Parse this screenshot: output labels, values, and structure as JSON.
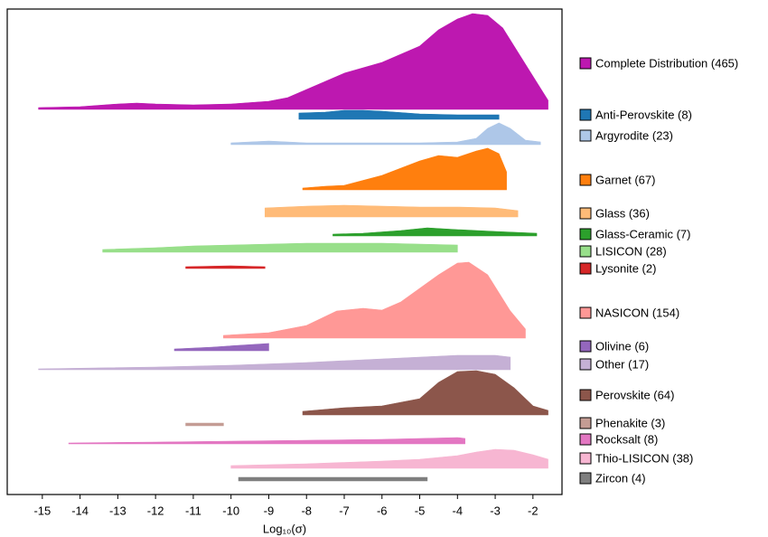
{
  "chart_data": {
    "type": "ridgeline",
    "xlabel": "Log₁₀(σ)",
    "xlim": [
      -15.93,
      -1.23
    ],
    "xticks": [
      -15,
      -14,
      -13,
      -12,
      -11,
      -10,
      -9,
      -8,
      -7,
      -6,
      -5,
      -4,
      -3,
      -2
    ],
    "series": [
      {
        "name": "Complete Distribution (465)",
        "color": "#bd18b0",
        "x": [
          -15.1,
          -14,
          -13,
          -12.5,
          -12,
          -11,
          -10,
          -9,
          -8.5,
          -8,
          -7,
          -6,
          -5,
          -4.5,
          -4,
          -3.6,
          -3.2,
          -2.8,
          -2.2,
          -1.6
        ],
        "values": [
          2,
          3,
          6,
          7,
          6,
          5,
          6,
          9,
          13,
          22,
          40,
          52,
          70,
          88,
          100,
          106,
          104,
          90,
          50,
          10
        ]
      },
      {
        "name": "Anti-Perovskite (8)",
        "color": "#1f77b4",
        "x": [
          -8.2,
          -7.5,
          -7,
          -6.5,
          -6,
          -5,
          -4,
          -3.5,
          -2.9
        ],
        "values": [
          7,
          8,
          10,
          10,
          9,
          6,
          5,
          5,
          5
        ]
      },
      {
        "name": "Argyrodite (23)",
        "color": "#aec7e8",
        "x": [
          -10,
          -9,
          -8,
          -7,
          -6,
          -5,
          -4,
          -3.5,
          -3.2,
          -2.9,
          -2.6,
          -2.2,
          -1.8
        ],
        "values": [
          2,
          4,
          2,
          2,
          2,
          2,
          3,
          7,
          18,
          24,
          18,
          5,
          3
        ]
      },
      {
        "name": "Garnet (67)",
        "color": "#ff7f0e",
        "x": [
          -8.1,
          -7.5,
          -7,
          -6,
          -5,
          -4.5,
          -4,
          -3.5,
          -3.2,
          -2.9,
          -2.7
        ],
        "values": [
          2,
          4,
          5,
          16,
          32,
          38,
          36,
          43,
          46,
          40,
          20
        ]
      },
      {
        "name": "Glass (36)",
        "color": "#ffbb78",
        "x": [
          -9.1,
          -8,
          -7,
          -6,
          -5,
          -4,
          -3,
          -2.4
        ],
        "values": [
          10,
          12,
          13,
          12,
          11,
          11,
          10,
          7
        ]
      },
      {
        "name": "Glass-Ceramic (7)",
        "color": "#2ca02c",
        "x": [
          -7.3,
          -6.5,
          -5.5,
          -4.8,
          -4,
          -3,
          -1.9
        ],
        "values": [
          2,
          3,
          6,
          9,
          7,
          5,
          3
        ]
      },
      {
        "name": "LISICON (28)",
        "color": "#98df8a",
        "x": [
          -13.4,
          -12,
          -11,
          -10,
          -9,
          -8,
          -7,
          -6,
          -5,
          -4
        ],
        "values": [
          3,
          5,
          7,
          8,
          9,
          10,
          10,
          10,
          9,
          8
        ]
      },
      {
        "name": "Lysonite (2)",
        "color": "#d62728",
        "x": [
          -11.2,
          -10,
          -9.1
        ],
        "values": [
          2,
          3,
          2
        ]
      },
      {
        "name": "NASICON (154)",
        "color": "#ff9896",
        "x": [
          -10.2,
          -9,
          -8,
          -7.2,
          -6.5,
          -6,
          -5.5,
          -5,
          -4.5,
          -4,
          -3.7,
          -3.2,
          -2.6,
          -2.2
        ],
        "values": [
          3,
          6,
          14,
          30,
          33,
          31,
          40,
          55,
          70,
          83,
          84,
          70,
          30,
          10
        ]
      },
      {
        "name": "Olivine (6)",
        "color": "#9467bd",
        "x": [
          -11.5,
          -10.5,
          -9.8,
          -9
        ],
        "values": [
          2,
          4,
          6,
          8
        ]
      },
      {
        "name": "Other (17)",
        "color": "#c5b0d5",
        "x": [
          -15.1,
          -12,
          -10,
          -8,
          -6,
          -4,
          -3,
          -2.6
        ],
        "values": [
          1,
          3,
          5,
          8,
          12,
          16,
          16,
          14
        ]
      },
      {
        "name": "Perovskite (64)",
        "color": "#8c564b",
        "x": [
          -8.1,
          -7,
          -6,
          -5,
          -4.5,
          -4,
          -3.5,
          -3,
          -2.5,
          -2,
          -1.6
        ],
        "values": [
          4,
          8,
          10,
          18,
          36,
          48,
          49,
          45,
          30,
          10,
          5
        ]
      },
      {
        "name": "Phenakite (3)",
        "color": "#c49c94",
        "x": [
          -11.2,
          -10.7,
          -10.2
        ],
        "values": [
          3,
          3,
          3
        ]
      },
      {
        "name": "Rocksalt (8)",
        "color": "#e377c2",
        "x": [
          -14.3,
          -12,
          -10,
          -8,
          -6,
          -5,
          -4,
          -3.8
        ],
        "values": [
          1,
          2,
          3,
          4,
          5,
          6,
          7,
          6
        ]
      },
      {
        "name": "Thio-LISICON (38)",
        "color": "#f7b6d2",
        "x": [
          -10,
          -8,
          -6,
          -5,
          -4,
          -3.5,
          -3,
          -2.5,
          -2,
          -1.6
        ],
        "values": [
          3,
          5,
          8,
          10,
          14,
          18,
          21,
          20,
          15,
          10
        ]
      },
      {
        "name": "Zircon (4)",
        "color": "#7f7f7f",
        "x": [
          -9.8,
          -7,
          -4.8
        ],
        "values": [
          4,
          4,
          4
        ]
      }
    ]
  }
}
